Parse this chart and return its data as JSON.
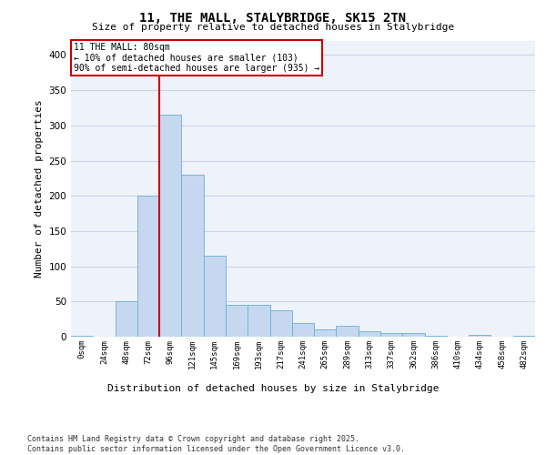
{
  "title_line1": "11, THE MALL, STALYBRIDGE, SK15 2TN",
  "title_line2": "Size of property relative to detached houses in Stalybridge",
  "xlabel": "Distribution of detached houses by size in Stalybridge",
  "ylabel": "Number of detached properties",
  "footnote": "Contains HM Land Registry data © Crown copyright and database right 2025.\nContains public sector information licensed under the Open Government Licence v3.0.",
  "annotation_title": "11 THE MALL: 80sqm",
  "annotation_line2": "← 10% of detached houses are smaller (103)",
  "annotation_line3": "90% of semi-detached houses are larger (935) →",
  "bar_values": [
    1,
    0,
    50,
    200,
    315,
    230,
    115,
    45,
    45,
    37,
    20,
    10,
    15,
    8,
    5,
    5,
    1,
    0,
    3,
    0,
    1
  ],
  "categories": [
    "0sqm",
    "24sqm",
    "48sqm",
    "72sqm",
    "96sqm",
    "121sqm",
    "145sqm",
    "169sqm",
    "193sqm",
    "217sqm",
    "241sqm",
    "265sqm",
    "289sqm",
    "313sqm",
    "337sqm",
    "362sqm",
    "386sqm",
    "410sqm",
    "434sqm",
    "458sqm",
    "482sqm"
  ],
  "bar_color": "#c5d8f0",
  "bar_edge_color": "#6baed6",
  "vline_x_idx": 3.5,
  "vline_color": "#cc0000",
  "annotation_box_color": "#cc0000",
  "ylim": [
    0,
    420
  ],
  "yticks": [
    0,
    50,
    100,
    150,
    200,
    250,
    300,
    350,
    400
  ],
  "grid_color": "#c8d4e8",
  "bg_color": "#eef2fb"
}
